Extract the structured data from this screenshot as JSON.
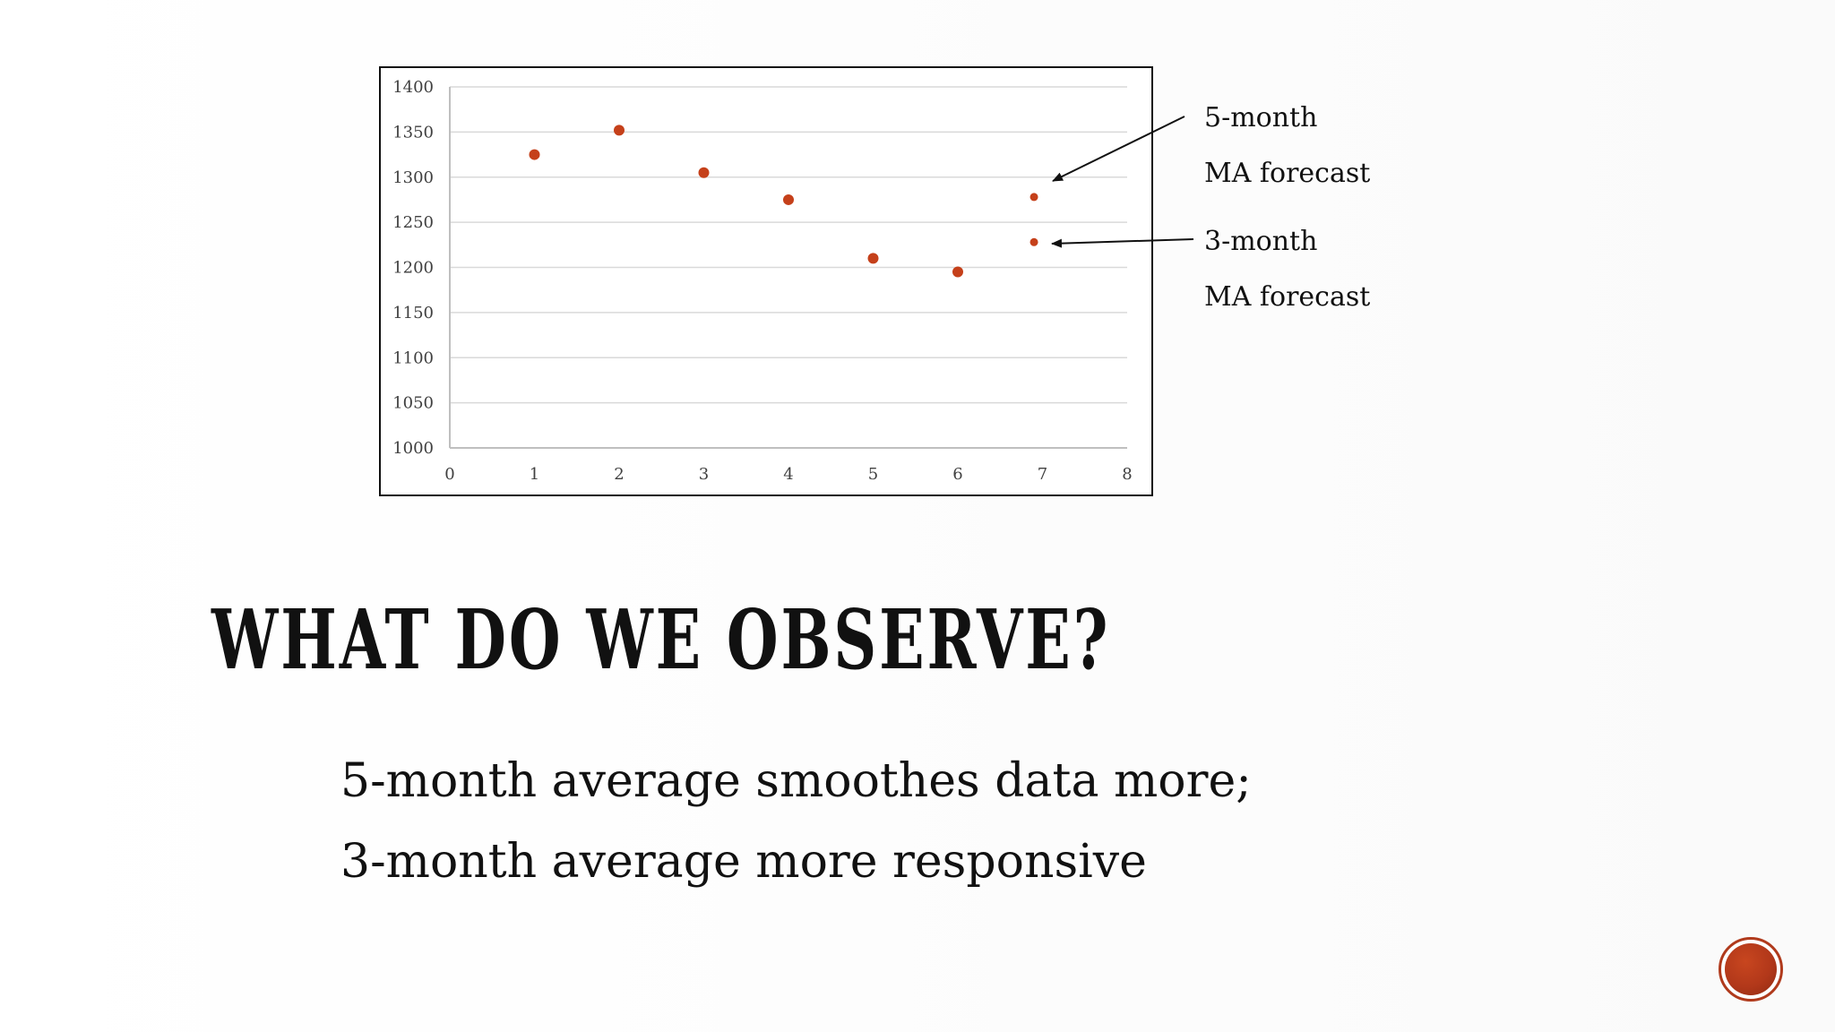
{
  "chart_data": {
    "type": "scatter",
    "title": "",
    "xlabel": "",
    "ylabel": "",
    "xlim": [
      0,
      8
    ],
    "ylim": [
      1000,
      1400
    ],
    "x_ticks": [
      "0",
      "1",
      "2",
      "3",
      "4",
      "5",
      "6",
      "7",
      "8"
    ],
    "y_ticks": [
      "1000",
      "1050",
      "1100",
      "1150",
      "1200",
      "1250",
      "1300",
      "1350",
      "1400"
    ],
    "grid": "horizontal",
    "color": "#c5401a",
    "series": [
      {
        "points": [
          {
            "x": 1,
            "y": 1325
          },
          {
            "x": 2,
            "y": 1352
          },
          {
            "x": 3,
            "y": 1305
          },
          {
            "x": 4,
            "y": 1275
          },
          {
            "x": 5,
            "y": 1210
          },
          {
            "x": 6,
            "y": 1195
          }
        ]
      },
      {
        "points": [
          {
            "x": 6.9,
            "y": 1278
          }
        ]
      },
      {
        "points": [
          {
            "x": 6.9,
            "y": 1228
          }
        ]
      }
    ]
  },
  "annotations": {
    "five_month_line1": "5-month",
    "five_month_line2": "MA forecast",
    "three_month_line1": "3-month",
    "three_month_line2": "MA forecast"
  },
  "slide": {
    "title": "WHAT DO WE OBSERVE?",
    "body_line1": "5-month average smoothes data more;",
    "body_line2": "3-month average more responsive"
  }
}
